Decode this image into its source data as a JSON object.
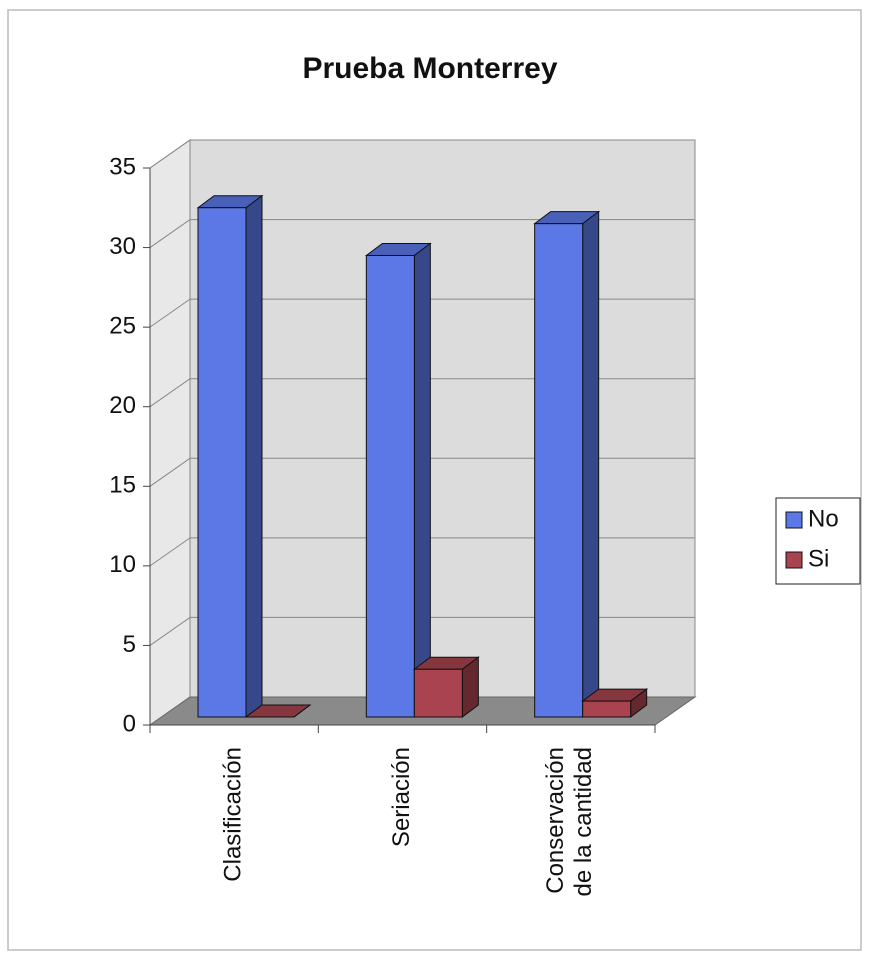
{
  "chart_data": {
    "type": "bar3d",
    "title": "Prueba Monterrey",
    "categories": [
      "Clasificación",
      "Seriación",
      "Conservación de la cantidad"
    ],
    "series": [
      {
        "name": "No",
        "color": "#5b78e6",
        "values": [
          32,
          29,
          31
        ]
      },
      {
        "name": "Si",
        "color": "#a8434f",
        "values": [
          0,
          3,
          1
        ]
      }
    ],
    "ylim": [
      0,
      35
    ],
    "yticks": [
      0,
      5,
      10,
      15,
      20,
      25,
      30,
      35
    ],
    "grid": true,
    "legend": "right"
  }
}
